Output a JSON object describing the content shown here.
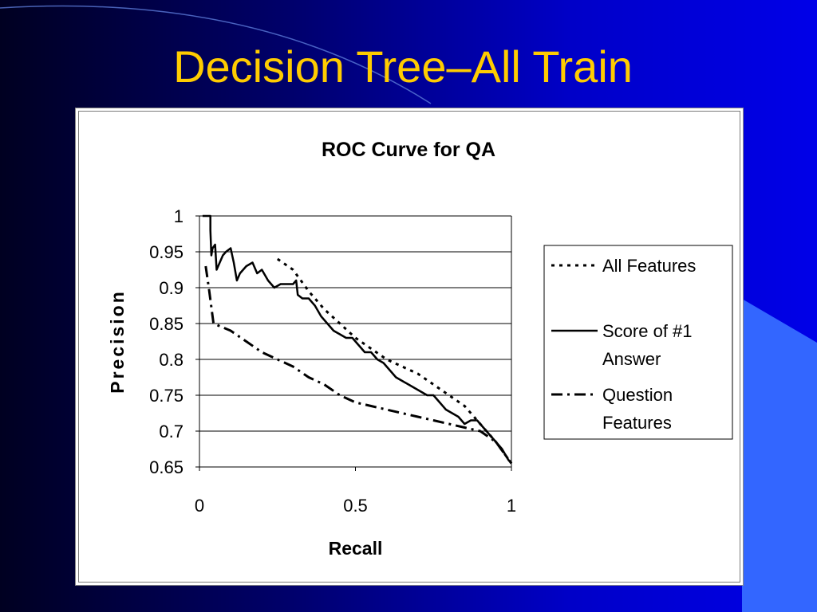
{
  "slide": {
    "title": "Decision Tree–All Train"
  },
  "colors": {
    "title": "#ffcc00",
    "background_dark": "#000021",
    "background_bright": "#0000e8",
    "accent_shape": "#3366ff",
    "chart_background": "#ffffff",
    "series_line": "#000000"
  },
  "chart_data": {
    "type": "line",
    "title": "ROC Curve for QA",
    "xlabel": "Recall",
    "ylabel": "Precision",
    "xlim": [
      0,
      1
    ],
    "ylim": [
      0.65,
      1
    ],
    "x_ticks": [
      "0",
      "0.5",
      "1"
    ],
    "y_ticks": [
      "1",
      "0.95",
      "0.9",
      "0.85",
      "0.8",
      "0.75",
      "0.7",
      "0.65"
    ],
    "grid": "horizontal",
    "legend_position": "right",
    "series": [
      {
        "name": "All Features",
        "dash": "dotted",
        "points": [
          [
            0.25,
            0.94
          ],
          [
            0.3,
            0.925
          ],
          [
            0.35,
            0.895
          ],
          [
            0.4,
            0.87
          ],
          [
            0.45,
            0.85
          ],
          [
            0.5,
            0.83
          ],
          [
            0.55,
            0.815
          ],
          [
            0.6,
            0.8
          ],
          [
            0.65,
            0.79
          ],
          [
            0.7,
            0.78
          ],
          [
            0.75,
            0.765
          ],
          [
            0.8,
            0.75
          ],
          [
            0.85,
            0.735
          ],
          [
            0.9,
            0.71
          ],
          [
            0.95,
            0.685
          ],
          [
            1.0,
            0.655
          ]
        ]
      },
      {
        "name": "Score of #1 Answer",
        "dash": "solid",
        "points": [
          [
            0.01,
            1.0
          ],
          [
            0.035,
            1.0
          ],
          [
            0.035,
            0.98
          ],
          [
            0.038,
            0.945
          ],
          [
            0.042,
            0.955
          ],
          [
            0.05,
            0.96
          ],
          [
            0.055,
            0.925
          ],
          [
            0.065,
            0.935
          ],
          [
            0.075,
            0.945
          ],
          [
            0.085,
            0.95
          ],
          [
            0.1,
            0.955
          ],
          [
            0.11,
            0.935
          ],
          [
            0.12,
            0.91
          ],
          [
            0.13,
            0.92
          ],
          [
            0.15,
            0.93
          ],
          [
            0.17,
            0.935
          ],
          [
            0.185,
            0.92
          ],
          [
            0.2,
            0.925
          ],
          [
            0.22,
            0.91
          ],
          [
            0.24,
            0.9
          ],
          [
            0.26,
            0.905
          ],
          [
            0.28,
            0.905
          ],
          [
            0.3,
            0.905
          ],
          [
            0.31,
            0.91
          ],
          [
            0.315,
            0.89
          ],
          [
            0.33,
            0.885
          ],
          [
            0.35,
            0.885
          ],
          [
            0.37,
            0.875
          ],
          [
            0.39,
            0.86
          ],
          [
            0.41,
            0.85
          ],
          [
            0.43,
            0.84
          ],
          [
            0.45,
            0.835
          ],
          [
            0.47,
            0.83
          ],
          [
            0.49,
            0.83
          ],
          [
            0.51,
            0.82
          ],
          [
            0.53,
            0.81
          ],
          [
            0.55,
            0.81
          ],
          [
            0.57,
            0.8
          ],
          [
            0.59,
            0.795
          ],
          [
            0.61,
            0.785
          ],
          [
            0.63,
            0.775
          ],
          [
            0.65,
            0.77
          ],
          [
            0.67,
            0.765
          ],
          [
            0.69,
            0.76
          ],
          [
            0.71,
            0.755
          ],
          [
            0.73,
            0.75
          ],
          [
            0.75,
            0.75
          ],
          [
            0.77,
            0.74
          ],
          [
            0.79,
            0.73
          ],
          [
            0.81,
            0.725
          ],
          [
            0.83,
            0.72
          ],
          [
            0.85,
            0.71
          ],
          [
            0.87,
            0.715
          ],
          [
            0.89,
            0.715
          ],
          [
            0.91,
            0.705
          ],
          [
            0.93,
            0.695
          ],
          [
            0.95,
            0.685
          ],
          [
            0.97,
            0.675
          ],
          [
            0.99,
            0.66
          ],
          [
            1.0,
            0.655
          ]
        ]
      },
      {
        "name": "Question Features",
        "dash": "dash-dot",
        "points": [
          [
            0.02,
            0.93
          ],
          [
            0.03,
            0.9
          ],
          [
            0.045,
            0.85
          ],
          [
            0.1,
            0.84
          ],
          [
            0.15,
            0.825
          ],
          [
            0.2,
            0.81
          ],
          [
            0.25,
            0.8
          ],
          [
            0.3,
            0.79
          ],
          [
            0.35,
            0.775
          ],
          [
            0.4,
            0.765
          ],
          [
            0.45,
            0.75
          ],
          [
            0.5,
            0.74
          ],
          [
            0.55,
            0.735
          ],
          [
            0.6,
            0.73
          ],
          [
            0.65,
            0.725
          ],
          [
            0.7,
            0.72
          ],
          [
            0.75,
            0.715
          ],
          [
            0.8,
            0.71
          ],
          [
            0.85,
            0.705
          ],
          [
            0.9,
            0.7
          ],
          [
            0.95,
            0.685
          ],
          [
            1.0,
            0.655
          ]
        ]
      }
    ]
  }
}
